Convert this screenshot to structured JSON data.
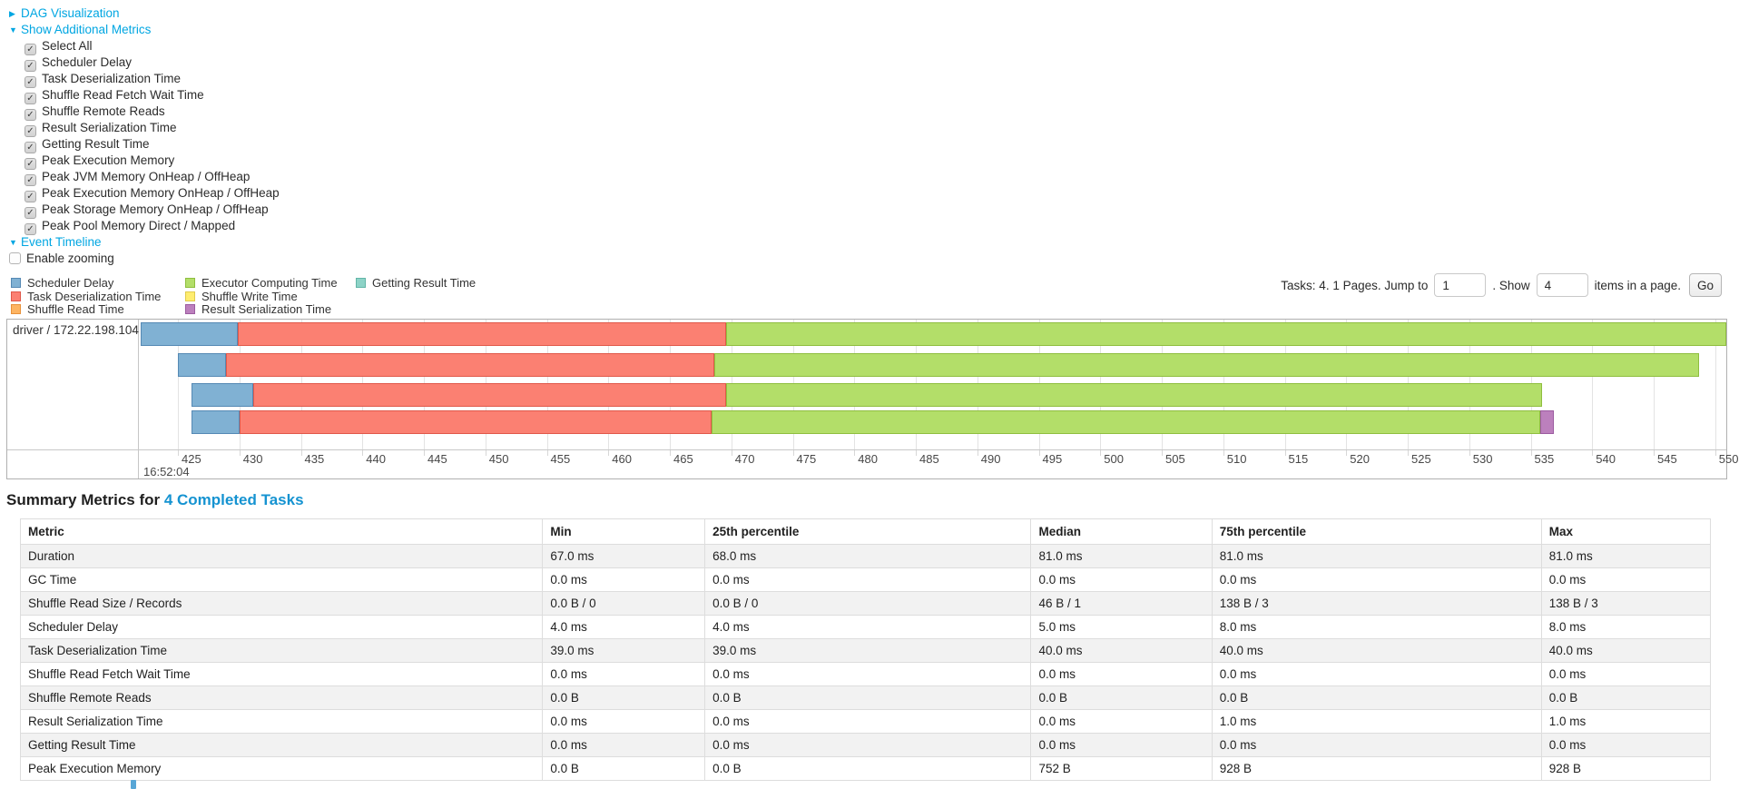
{
  "accent": {
    "nav_link_color": "#00a6e2",
    "heading_link_color": "#1593d1"
  },
  "nav": {
    "dag_label": "DAG Visualization",
    "metrics_toggle_label": "Show Additional Metrics",
    "metric_checkboxes": [
      "Select All",
      "Scheduler Delay",
      "Task Deserialization Time",
      "Shuffle Read Fetch Wait Time",
      "Shuffle Remote Reads",
      "Result Serialization Time",
      "Getting Result Time",
      "Peak Execution Memory",
      "Peak JVM Memory OnHeap / OffHeap",
      "Peak Execution Memory OnHeap / OffHeap",
      "Peak Storage Memory OnHeap / OffHeap",
      "Peak Pool Memory Direct / Mapped"
    ],
    "event_timeline_label": "Event Timeline",
    "enable_zooming_label": "Enable zooming"
  },
  "pagination": {
    "info": "Tasks: 4. 1 Pages. Jump to",
    "jump_value": "1",
    "show_label": ". Show",
    "show_value": "4",
    "items_label": "items in a page.",
    "go_label": "Go"
  },
  "colors": {
    "scheduler_delay": {
      "fill": "#80B1D3",
      "stroke": "#5589B4"
    },
    "task_deserialization": {
      "fill": "#FB8072",
      "stroke": "#E0584A"
    },
    "shuffle_read": {
      "fill": "#FDB462",
      "stroke": "#E8913A"
    },
    "executor_computing": {
      "fill": "#B3DE69",
      "stroke": "#8FBE3F"
    },
    "shuffle_write": {
      "fill": "#FFED6F",
      "stroke": "#E0CB4C"
    },
    "result_serialization": {
      "fill": "#BC80BD",
      "stroke": "#9C5BA0"
    },
    "getting_result": {
      "fill": "#8DD3C7",
      "stroke": "#62B5A7"
    }
  },
  "legend": {
    "columns": [
      [
        {
          "key": "scheduler_delay",
          "label": "Scheduler Delay"
        },
        {
          "key": "task_deserialization",
          "label": "Task Deserialization Time"
        },
        {
          "key": "shuffle_read",
          "label": "Shuffle Read Time"
        }
      ],
      [
        {
          "key": "executor_computing",
          "label": "Executor Computing Time"
        },
        {
          "key": "shuffle_write",
          "label": "Shuffle Write Time"
        },
        {
          "key": "result_serialization",
          "label": "Result Serialization Time"
        }
      ],
      [
        {
          "key": "getting_result",
          "label": "Getting Result Time"
        }
      ]
    ]
  },
  "chart_data": {
    "type": "timeline",
    "group_label": "driver / 172.22.198.104",
    "x_axis": {
      "visible_min": 421.9,
      "visible_max": 550.9,
      "tick_start": 425,
      "tick_end": 550,
      "tick_step": 5,
      "major_time_label": "16:52:04"
    },
    "tasks": [
      {
        "segments": [
          {
            "metric": "scheduler_delay",
            "start": 422.0,
            "end": 429.9
          },
          {
            "metric": "task_deserialization",
            "start": 429.9,
            "end": 469.6
          },
          {
            "metric": "executor_computing",
            "start": 469.6,
            "end": 550.9
          }
        ]
      },
      {
        "segments": [
          {
            "metric": "scheduler_delay",
            "start": 425.0,
            "end": 428.9
          },
          {
            "metric": "task_deserialization",
            "start": 428.9,
            "end": 468.6
          },
          {
            "metric": "executor_computing",
            "start": 468.6,
            "end": 548.7
          }
        ]
      },
      {
        "segments": [
          {
            "metric": "scheduler_delay",
            "start": 426.1,
            "end": 431.1
          },
          {
            "metric": "task_deserialization",
            "start": 431.1,
            "end": 469.6
          },
          {
            "metric": "executor_computing",
            "start": 469.6,
            "end": 535.9
          }
        ]
      },
      {
        "segments": [
          {
            "metric": "scheduler_delay",
            "start": 426.1,
            "end": 430.0
          },
          {
            "metric": "task_deserialization",
            "start": 430.0,
            "end": 468.4
          },
          {
            "metric": "executor_computing",
            "start": 468.4,
            "end": 535.8
          },
          {
            "metric": "result_serialization",
            "start": 535.8,
            "end": 536.9
          }
        ]
      }
    ]
  },
  "summary": {
    "heading_prefix": "Summary Metrics for ",
    "heading_link": "4 Completed Tasks",
    "table": {
      "headers": [
        "Metric",
        "Min",
        "25th percentile",
        "Median",
        "75th percentile",
        "Max"
      ],
      "rows": [
        [
          "Duration",
          "67.0 ms",
          "68.0 ms",
          "81.0 ms",
          "81.0 ms",
          "81.0 ms"
        ],
        [
          "GC Time",
          "0.0 ms",
          "0.0 ms",
          "0.0 ms",
          "0.0 ms",
          "0.0 ms"
        ],
        [
          "Shuffle Read Size / Records",
          "0.0 B / 0",
          "0.0 B / 0",
          "46 B / 1",
          "138 B / 3",
          "138 B / 3"
        ],
        [
          "Scheduler Delay",
          "4.0 ms",
          "4.0 ms",
          "5.0 ms",
          "8.0 ms",
          "8.0 ms"
        ],
        [
          "Task Deserialization Time",
          "39.0 ms",
          "39.0 ms",
          "40.0 ms",
          "40.0 ms",
          "40.0 ms"
        ],
        [
          "Shuffle Read Fetch Wait Time",
          "0.0 ms",
          "0.0 ms",
          "0.0 ms",
          "0.0 ms",
          "0.0 ms"
        ],
        [
          "Shuffle Remote Reads",
          "0.0 B",
          "0.0 B",
          "0.0 B",
          "0.0 B",
          "0.0 B"
        ],
        [
          "Result Serialization Time",
          "0.0 ms",
          "0.0 ms",
          "0.0 ms",
          "1.0 ms",
          "1.0 ms"
        ],
        [
          "Getting Result Time",
          "0.0 ms",
          "0.0 ms",
          "0.0 ms",
          "0.0 ms",
          "0.0 ms"
        ],
        [
          "Peak Execution Memory",
          "0.0 B",
          "0.0 B",
          "752 B",
          "928 B",
          "928 B"
        ]
      ]
    }
  }
}
